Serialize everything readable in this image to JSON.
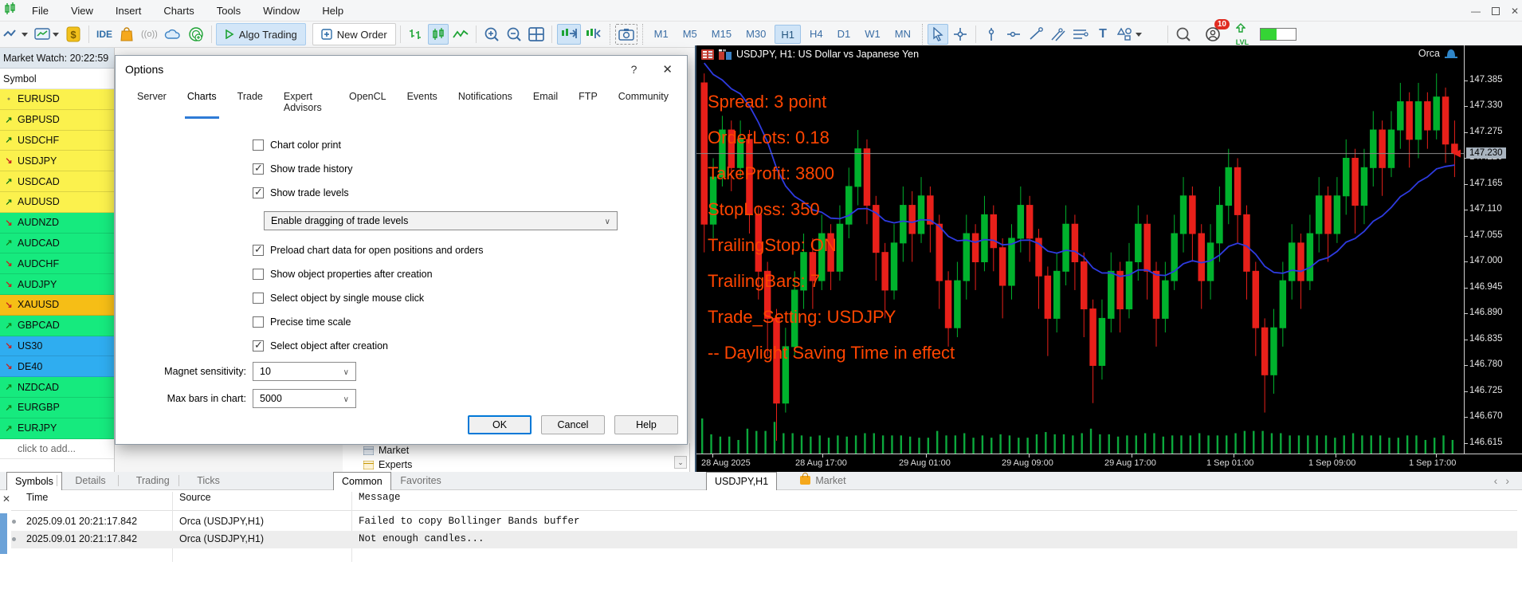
{
  "colors": {
    "accent_blue": "#2e7bd6",
    "toolbar_icon_blue": "#3b6ea5",
    "candle_green": "#00b22d",
    "candle_red": "#e8201a",
    "ma_line_blue": "#2e3be0",
    "overlay_orange": "#ff4500",
    "row_yellow": "#fbf14d",
    "row_green": "#16ea7e",
    "row_gold": "#f6be16",
    "row_blue": "#2fadf0",
    "current_price_bg": "#a9b4bf"
  },
  "menubar": {
    "items": [
      "File",
      "View",
      "Insert",
      "Charts",
      "Tools",
      "Window",
      "Help"
    ]
  },
  "toolbar": {
    "ide_label": "IDE",
    "algo_trading_label": "Algo Trading",
    "new_order_label": "New Order",
    "timeframes": [
      "M1",
      "M5",
      "M15",
      "M30",
      "H1",
      "H4",
      "D1",
      "W1",
      "MN"
    ],
    "active_timeframe": "H1",
    "notification_count": "10",
    "lvl_label": "LVL"
  },
  "market_watch": {
    "title": "Market Watch: 20:22:59",
    "column_header": "Symbol",
    "add_row_label": "click to add...",
    "symbols": [
      {
        "name": "EURUSD",
        "bg": "#fbf14d",
        "dir": "flat"
      },
      {
        "name": "GBPUSD",
        "bg": "#fbf14d",
        "dir": "up"
      },
      {
        "name": "USDCHF",
        "bg": "#fbf14d",
        "dir": "up"
      },
      {
        "name": "USDJPY",
        "bg": "#fbf14d",
        "dir": "down"
      },
      {
        "name": "USDCAD",
        "bg": "#fbf14d",
        "dir": "up"
      },
      {
        "name": "AUDUSD",
        "bg": "#fbf14d",
        "dir": "up"
      },
      {
        "name": "AUDNZD",
        "bg": "#16ea7e",
        "dir": "down"
      },
      {
        "name": "AUDCAD",
        "bg": "#16ea7e",
        "dir": "up"
      },
      {
        "name": "AUDCHF",
        "bg": "#16ea7e",
        "dir": "down"
      },
      {
        "name": "AUDJPY",
        "bg": "#16ea7e",
        "dir": "down"
      },
      {
        "name": "XAUUSD",
        "bg": "#f6be16",
        "dir": "down"
      },
      {
        "name": "GBPCAD",
        "bg": "#16ea7e",
        "dir": "up"
      },
      {
        "name": "US30",
        "bg": "#2fadf0",
        "dir": "down"
      },
      {
        "name": "DE40",
        "bg": "#2fadf0",
        "dir": "down"
      },
      {
        "name": "NZDCAD",
        "bg": "#16ea7e",
        "dir": "up"
      },
      {
        "name": "EURGBP",
        "bg": "#16ea7e",
        "dir": "up"
      },
      {
        "name": "EURJPY",
        "bg": "#16ea7e",
        "dir": "up"
      }
    ]
  },
  "options_dialog": {
    "title": "Options",
    "help_glyph": "?",
    "close_glyph": "✕",
    "tabs": [
      "Server",
      "Charts",
      "Trade",
      "Expert Advisors",
      "OpenCL",
      "Events",
      "Notifications",
      "Email",
      "FTP",
      "Community"
    ],
    "active_tab": "Charts",
    "checkboxes_top": [
      {
        "label": "Chart color print",
        "checked": false
      },
      {
        "label": "Show trade history",
        "checked": true
      },
      {
        "label": "Show trade levels",
        "checked": true
      }
    ],
    "trade_levels_dropdown": "Enable dragging of trade levels",
    "checkboxes_bottom": [
      {
        "label": "Preload chart data for open positions and orders",
        "checked": true
      },
      {
        "label": "Show object properties after creation",
        "checked": false
      },
      {
        "label": "Select object by single mouse click",
        "checked": false
      },
      {
        "label": "Precise time scale",
        "checked": false
      },
      {
        "label": "Select object after creation",
        "checked": true
      }
    ],
    "fields": [
      {
        "label": "Magnet sensitivity:",
        "value": "10"
      },
      {
        "label": "Max bars in chart:",
        "value": "5000"
      }
    ],
    "buttons": [
      "OK",
      "Cancel",
      "Help"
    ],
    "focused_button": "OK"
  },
  "navigator": {
    "items": [
      "Market",
      "Experts"
    ],
    "tabs": [
      "Common",
      "Favorites"
    ],
    "active_tab": "Common"
  },
  "chart": {
    "title": "USDJPY, H1:  US Dollar vs Japanese Yen",
    "watermark": "Orca",
    "overlay_lines": [
      "Spread: 3 point",
      "OrderLots: 0.18",
      "TakeProfit: 3800",
      "StopLoss: 350",
      "TrailingStop: ON",
      "TrailingBars: 7",
      "Trade_Setting: USDJPY",
      "-- Daylight Saving Time in effect"
    ],
    "price_axis_labels": [
      "147.385",
      "147.330",
      "147.275",
      "147.220",
      "147.165",
      "147.110",
      "147.055",
      "147.000",
      "146.945",
      "146.890",
      "146.835",
      "146.780",
      "146.725",
      "146.670",
      "146.615"
    ],
    "current_price": "147.230",
    "time_axis_labels": [
      "28 Aug 2025",
      "28 Aug 17:00",
      "29 Aug 01:00",
      "29 Aug 09:00",
      "29 Aug 17:00",
      "1 Sep 01:00",
      "1 Sep 09:00",
      "1 Sep 17:00"
    ],
    "tabs": [
      {
        "label": "USDJPY,H1",
        "active": true
      },
      {
        "label": "Market",
        "active": false
      }
    ]
  },
  "chart_data": {
    "type": "candlestick",
    "symbol": "USDJPY",
    "period": "H1",
    "ylim": [
      146.6,
      147.44
    ],
    "current_price": 147.23,
    "candles_ochl": [
      [
        147.38,
        147.08,
        147.4,
        147.02
      ],
      [
        147.08,
        147.18,
        147.22,
        147.05
      ],
      [
        147.18,
        147.28,
        147.31,
        147.16
      ],
      [
        147.28,
        147.2,
        147.3,
        147.15
      ],
      [
        147.2,
        147.26,
        147.3,
        147.18
      ],
      [
        147.26,
        147.1,
        147.28,
        147.06
      ],
      [
        147.1,
        146.98,
        147.12,
        146.92
      ],
      [
        146.98,
        146.88,
        147.0,
        146.8
      ],
      [
        146.88,
        146.7,
        146.9,
        146.62
      ],
      [
        146.7,
        146.82,
        146.86,
        146.68
      ],
      [
        146.82,
        146.94,
        146.98,
        146.8
      ],
      [
        146.94,
        147.02,
        147.06,
        146.9
      ],
      [
        147.02,
        146.96,
        147.05,
        146.9
      ],
      [
        146.96,
        147.06,
        147.1,
        146.94
      ],
      [
        147.06,
        146.98,
        147.08,
        146.94
      ],
      [
        146.98,
        147.08,
        147.12,
        146.96
      ],
      [
        147.08,
        147.16,
        147.2,
        147.05
      ],
      [
        147.16,
        147.24,
        147.28,
        147.12
      ],
      [
        147.24,
        147.12,
        147.26,
        147.08
      ],
      [
        147.12,
        147.02,
        147.14,
        146.96
      ],
      [
        147.02,
        146.94,
        147.04,
        146.88
      ],
      [
        146.94,
        147.04,
        147.08,
        146.92
      ],
      [
        147.04,
        147.12,
        147.16,
        147.0
      ],
      [
        147.12,
        147.06,
        147.15,
        147.0
      ],
      [
        147.06,
        147.14,
        147.18,
        147.04
      ],
      [
        147.14,
        147.08,
        147.16,
        147.02
      ],
      [
        147.08,
        146.96,
        147.1,
        146.9
      ],
      [
        146.96,
        146.86,
        146.98,
        146.82
      ],
      [
        146.86,
        146.96,
        147.0,
        146.84
      ],
      [
        146.96,
        147.06,
        147.1,
        146.92
      ],
      [
        147.06,
        147.0,
        147.08,
        146.94
      ],
      [
        147.0,
        147.1,
        147.14,
        146.98
      ],
      [
        147.1,
        147.03,
        147.12,
        146.98
      ],
      [
        147.03,
        146.95,
        147.05,
        146.88
      ],
      [
        146.95,
        147.05,
        147.08,
        146.92
      ],
      [
        147.05,
        147.12,
        147.16,
        147.02
      ],
      [
        147.12,
        147.05,
        147.14,
        147.0
      ],
      [
        147.05,
        146.97,
        147.07,
        146.9
      ],
      [
        146.97,
        146.88,
        146.99,
        146.8
      ],
      [
        146.88,
        146.98,
        147.02,
        146.85
      ],
      [
        146.98,
        147.08,
        147.12,
        146.95
      ],
      [
        147.08,
        147.0,
        147.1,
        146.94
      ],
      [
        147.0,
        146.9,
        147.02,
        146.84
      ],
      [
        146.9,
        146.78,
        146.92,
        146.7
      ],
      [
        146.78,
        146.88,
        146.92,
        146.75
      ],
      [
        146.88,
        146.98,
        147.02,
        146.85
      ],
      [
        146.98,
        146.9,
        147.0,
        146.85
      ],
      [
        146.9,
        147.0,
        147.04,
        146.88
      ],
      [
        147.0,
        147.08,
        147.12,
        146.96
      ],
      [
        147.08,
        146.98,
        147.1,
        146.92
      ],
      [
        146.98,
        146.88,
        147.0,
        146.82
      ],
      [
        146.88,
        146.96,
        147.0,
        146.85
      ],
      [
        146.96,
        147.06,
        147.1,
        146.94
      ],
      [
        147.06,
        147.14,
        147.18,
        147.02
      ],
      [
        147.14,
        147.06,
        147.16,
        147.0
      ],
      [
        147.06,
        146.96,
        147.08,
        146.9
      ],
      [
        146.96,
        147.04,
        147.08,
        146.92
      ],
      [
        147.04,
        147.12,
        147.16,
        147.0
      ],
      [
        147.12,
        147.2,
        147.24,
        147.08
      ],
      [
        147.2,
        147.1,
        147.22,
        147.04
      ],
      [
        147.1,
        146.98,
        147.12,
        146.92
      ],
      [
        146.98,
        146.86,
        147.0,
        146.8
      ],
      [
        146.86,
        146.76,
        146.88,
        146.68
      ],
      [
        146.76,
        146.86,
        146.9,
        146.72
      ],
      [
        146.86,
        146.96,
        147.0,
        146.82
      ],
      [
        146.96,
        147.04,
        147.08,
        146.92
      ],
      [
        147.04,
        146.96,
        147.06,
        146.9
      ],
      [
        146.96,
        147.06,
        147.1,
        146.94
      ],
      [
        147.06,
        147.14,
        147.18,
        147.02
      ],
      [
        147.14,
        147.06,
        147.16,
        147.0
      ],
      [
        147.06,
        147.14,
        147.18,
        147.04
      ],
      [
        147.14,
        147.22,
        147.26,
        147.1
      ],
      [
        147.22,
        147.12,
        147.24,
        147.06
      ],
      [
        147.12,
        147.2,
        147.24,
        147.08
      ],
      [
        147.2,
        147.28,
        147.32,
        147.16
      ],
      [
        147.28,
        147.2,
        147.3,
        147.14
      ],
      [
        147.2,
        147.28,
        147.32,
        147.18
      ],
      [
        147.28,
        147.34,
        147.38,
        147.24
      ],
      [
        147.34,
        147.26,
        147.36,
        147.2
      ],
      [
        147.26,
        147.34,
        147.38,
        147.22
      ],
      [
        147.34,
        147.28,
        147.36,
        147.24
      ],
      [
        147.28,
        147.35,
        147.4,
        147.26
      ],
      [
        147.35,
        147.25,
        147.37,
        147.21
      ],
      [
        147.25,
        147.23,
        147.3,
        147.18
      ]
    ]
  },
  "toolbox": {
    "tabs": [
      "Symbols",
      "Details",
      "Trading",
      "Ticks"
    ],
    "active_tab": "Symbols",
    "close_glyph": "✕",
    "columns": [
      "Time",
      "Source",
      "Message"
    ],
    "rows": [
      {
        "time": "2025.09.01 20:21:17.842",
        "source": "Orca (USDJPY,H1)",
        "message": "Failed to copy Bollinger Bands buffer"
      },
      {
        "time": "2025.09.01 20:21:17.842",
        "source": "Orca (USDJPY,H1)",
        "message": "Not enough candles..."
      }
    ]
  }
}
